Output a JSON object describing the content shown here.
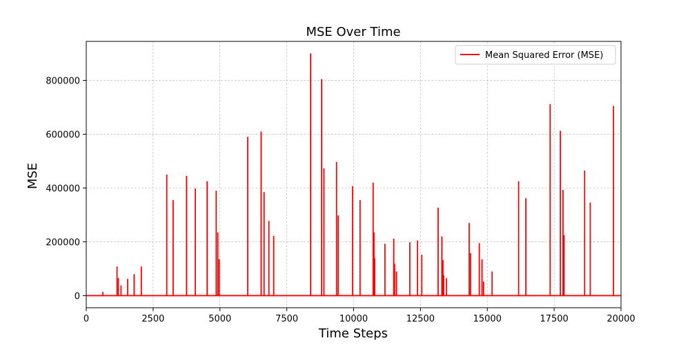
{
  "chart_data": {
    "type": "line",
    "title": "MSE Over Time",
    "xlabel": "Time Steps",
    "ylabel": "MSE",
    "xlim": [
      0,
      20000
    ],
    "ylim": [
      -45000,
      945000
    ],
    "xticks": [
      0,
      2500,
      5000,
      7500,
      10000,
      12500,
      15000,
      17500,
      20000
    ],
    "xtick_labels": [
      "0",
      "2500",
      "5000",
      "7500",
      "10000",
      "12500",
      "15000",
      "17500",
      "20000"
    ],
    "yticks": [
      0,
      200000,
      400000,
      600000,
      800000
    ],
    "ytick_labels": [
      "0",
      "200000",
      "400000",
      "600000",
      "800000"
    ],
    "grid": true,
    "legend_position": "top-right",
    "colors": {
      "series": "#ff0000"
    },
    "series": [
      {
        "name": "Mean Squared Error (MSE)",
        "baseline": 0,
        "spikes": [
          [
            620,
            14000
          ],
          [
            1150,
            108000
          ],
          [
            1200,
            65000
          ],
          [
            1300,
            38000
          ],
          [
            1550,
            62000
          ],
          [
            1790,
            80000
          ],
          [
            2060,
            108000
          ],
          [
            3010,
            450000
          ],
          [
            3250,
            355000
          ],
          [
            3750,
            445000
          ],
          [
            4080,
            398000
          ],
          [
            4520,
            425000
          ],
          [
            4860,
            390000
          ],
          [
            4920,
            235000
          ],
          [
            4970,
            135000
          ],
          [
            6040,
            590000
          ],
          [
            6540,
            610000
          ],
          [
            6650,
            385000
          ],
          [
            6830,
            278000
          ],
          [
            7010,
            222000
          ],
          [
            8390,
            900000
          ],
          [
            8800,
            805000
          ],
          [
            8890,
            473000
          ],
          [
            9360,
            497000
          ],
          [
            9420,
            298000
          ],
          [
            9960,
            407000
          ],
          [
            10240,
            355000
          ],
          [
            10730,
            420000
          ],
          [
            10760,
            235000
          ],
          [
            10790,
            138000
          ],
          [
            11170,
            193000
          ],
          [
            11500,
            212000
          ],
          [
            11530,
            118000
          ],
          [
            11600,
            90000
          ],
          [
            12100,
            198000
          ],
          [
            12390,
            205000
          ],
          [
            12550,
            152000
          ],
          [
            13160,
            327000
          ],
          [
            13300,
            220000
          ],
          [
            13340,
            132000
          ],
          [
            13370,
            75000
          ],
          [
            13470,
            65000
          ],
          [
            14320,
            270000
          ],
          [
            14370,
            158000
          ],
          [
            14700,
            195000
          ],
          [
            14800,
            135000
          ],
          [
            14860,
            52000
          ],
          [
            15180,
            90000
          ],
          [
            16170,
            425000
          ],
          [
            16440,
            362000
          ],
          [
            17350,
            712000
          ],
          [
            17730,
            613000
          ],
          [
            17830,
            393000
          ],
          [
            17870,
            225000
          ],
          [
            18640,
            465000
          ],
          [
            18850,
            346000
          ],
          [
            19720,
            705000
          ]
        ]
      }
    ]
  }
}
